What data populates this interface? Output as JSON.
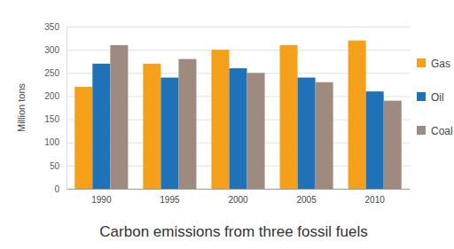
{
  "chart_data": {
    "type": "bar",
    "title": "Carbon emissions from three fossil fuels",
    "y_label": "Million tons",
    "categories": [
      "1990",
      "1995",
      "2000",
      "2005",
      "2010"
    ],
    "series": [
      {
        "name": "Gas",
        "color": "#f5a01a",
        "values": [
          220,
          270,
          300,
          310,
          320
        ]
      },
      {
        "name": "Oil",
        "color": "#1f72b8",
        "values": [
          270,
          240,
          260,
          240,
          210
        ]
      },
      {
        "name": "Coal",
        "color": "#9e8a7e",
        "values": [
          310,
          280,
          250,
          230,
          190
        ]
      }
    ],
    "ylim": [
      0,
      350
    ],
    "yticks": [
      0,
      50,
      100,
      150,
      200,
      250,
      300,
      350
    ],
    "grid": true,
    "legend": "right"
  }
}
